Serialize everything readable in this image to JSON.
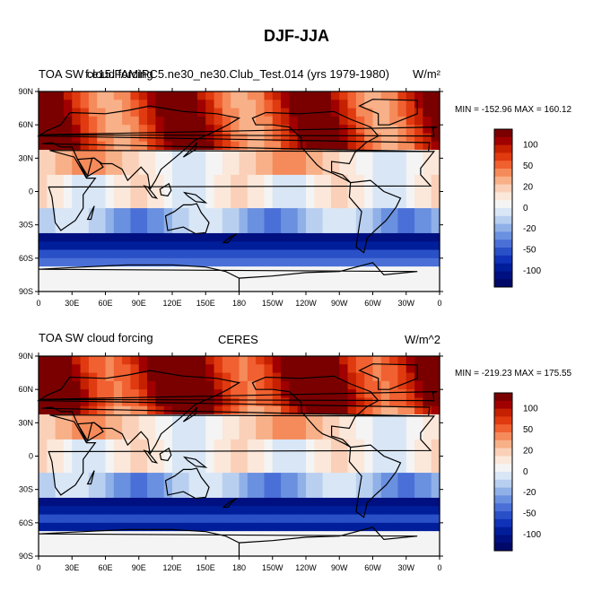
{
  "figure_title": "DJF-JJA",
  "colors": {
    "ocean_fill": "#ffffff",
    "coast": "#000000",
    "strong_negative": "#001480",
    "weak_negative": "#c8d8f0",
    "near_zero": "#f2f2f2",
    "weak_positive": "#f9c8a8",
    "strong_positive": "#a00000"
  },
  "colorbar": {
    "levels": [
      "100",
      "50",
      "20",
      "0",
      "-20",
      "-50",
      "-100"
    ],
    "colors": [
      "#7a0000",
      "#a00000",
      "#c52000",
      "#e03a10",
      "#f06030",
      "#f58a5a",
      "#f8b088",
      "#fbd0b8",
      "#fbe8da",
      "#f4f4f4",
      "#d8e6f6",
      "#b8cff0",
      "#90b0e8",
      "#6a90e0",
      "#4a70d8",
      "#2a50c8",
      "#1032b8",
      "#001e9a",
      "#001080",
      "#000868"
    ]
  },
  "chart_data": [
    {
      "type": "heatmap",
      "title_left": "TOA SW cloud forcing",
      "title_left_overprint": "f.e15.FAMIPC5.ne30_ne30.Club_Test.014 (yrs 1979-1980)",
      "title_center": "",
      "title_right": "W/m²",
      "stats": "MIN = -152.96 MAX = 160.12",
      "min": -152.96,
      "max": 160.12,
      "lat_ticks": [
        "90N",
        "60N",
        "30N",
        "0",
        "30S",
        "60S",
        "90S"
      ],
      "lon_ticks": [
        "0",
        "30E",
        "60E",
        "90E",
        "120E",
        "150E",
        "180",
        "150W",
        "120W",
        "90W",
        "60W",
        "30W",
        "0"
      ],
      "xlim": [
        0,
        360
      ],
      "ylim": [
        -90,
        90
      ]
    },
    {
      "type": "heatmap",
      "title_left": "TOA SW cloud forcing",
      "title_left_overprint": "",
      "title_center": "CERES",
      "title_right": "W/m^2",
      "stats": "MIN = -219.23 MAX = 175.55",
      "min": -219.23,
      "max": 175.55,
      "lat_ticks": [
        "90N",
        "60N",
        "30N",
        "0",
        "30S",
        "60S",
        "90S"
      ],
      "lon_ticks": [
        "0",
        "30E",
        "60E",
        "90E",
        "120E",
        "150E",
        "180",
        "150W",
        "120W",
        "90W",
        "60W",
        "30W",
        "0"
      ],
      "xlim": [
        0,
        360
      ],
      "ylim": [
        -90,
        90
      ]
    }
  ]
}
